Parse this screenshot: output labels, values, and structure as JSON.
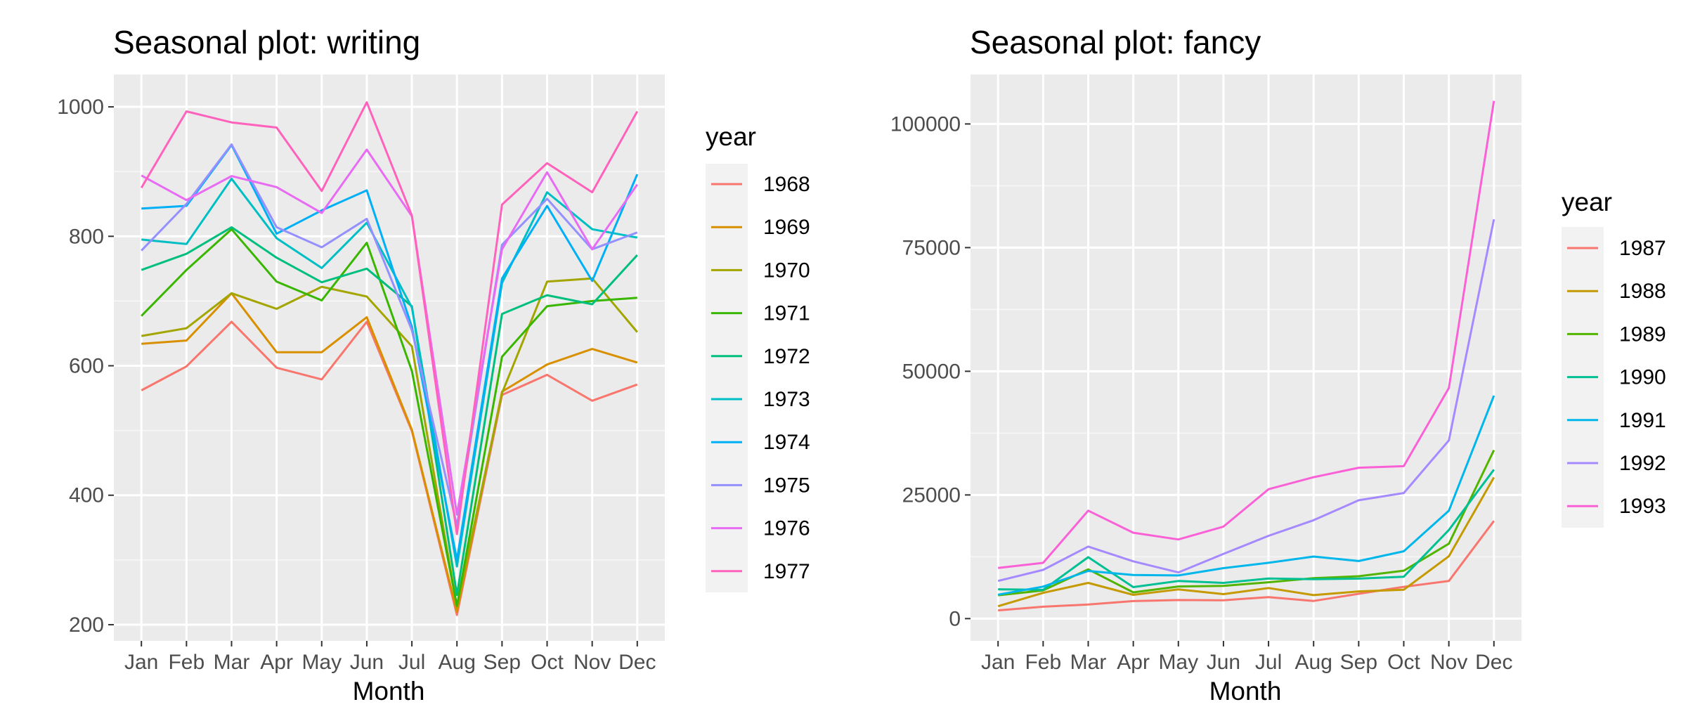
{
  "chart_data": [
    {
      "type": "line",
      "title": "Seasonal plot: writing",
      "xlabel": "Month",
      "ylabel": "",
      "categories": [
        "Jan",
        "Feb",
        "Mar",
        "Apr",
        "May",
        "Jun",
        "Jul",
        "Aug",
        "Sep",
        "Oct",
        "Nov",
        "Dec"
      ],
      "ylim": [
        175,
        1050
      ],
      "yticks": [
        200,
        400,
        600,
        800,
        1000
      ],
      "grid": true,
      "legend_title": "year",
      "legend_position": "right",
      "series": [
        {
          "name": "1968",
          "color": "#F8766D",
          "values": [
            562,
            599,
            668,
            597,
            579,
            668,
            499,
            215,
            555,
            586,
            546,
            571
          ]
        },
        {
          "name": "1969",
          "color": "#D89000",
          "values": [
            634,
            639,
            712,
            621,
            621,
            675,
            501,
            220,
            560,
            602,
            626,
            605
          ]
        },
        {
          "name": "1970",
          "color": "#A3A500",
          "values": [
            646,
            658,
            712,
            688,
            722,
            707,
            630,
            228,
            558,
            730,
            735,
            652
          ]
        },
        {
          "name": "1971",
          "color": "#39B600",
          "values": [
            677,
            748,
            811,
            730,
            701,
            790,
            592,
            229,
            614,
            692,
            700,
            705
          ]
        },
        {
          "name": "1972",
          "color": "#00BF7D",
          "values": [
            748,
            773,
            814,
            767,
            729,
            750,
            692,
            246,
            680,
            709,
            695,
            771
          ]
        },
        {
          "name": "1973",
          "color": "#00BFC4",
          "values": [
            795,
            788,
            889,
            797,
            751,
            821,
            690,
            290,
            728,
            868,
            811,
            798
          ]
        },
        {
          "name": "1974",
          "color": "#00B0F6",
          "values": [
            843,
            847,
            941,
            804,
            840,
            871,
            660,
            300,
            735,
            847,
            731,
            896
          ]
        },
        {
          "name": "1975",
          "color": "#9590FF",
          "values": [
            778,
            850,
            942,
            814,
            783,
            827,
            655,
            353,
            787,
            858,
            780,
            806
          ]
        },
        {
          "name": "1976",
          "color": "#E76BF3",
          "values": [
            894,
            856,
            893,
            876,
            836,
            934,
            831,
            370,
            780,
            899,
            780,
            880
          ]
        },
        {
          "name": "1977",
          "color": "#FF62BC",
          "values": [
            875,
            993,
            976,
            968,
            870,
            1007,
            832,
            340,
            849,
            913,
            868,
            993
          ]
        }
      ]
    },
    {
      "type": "line",
      "title": "Seasonal plot: fancy",
      "xlabel": "Month",
      "ylabel": "",
      "categories": [
        "Jan",
        "Feb",
        "Mar",
        "Apr",
        "May",
        "Jun",
        "Jul",
        "Aug",
        "Sep",
        "Oct",
        "Nov",
        "Dec"
      ],
      "ylim": [
        -4500,
        110000
      ],
      "yticks": [
        0,
        25000,
        50000,
        75000,
        100000
      ],
      "grid": true,
      "legend_title": "year",
      "legend_position": "right",
      "series": [
        {
          "name": "1987",
          "color": "#F8766D",
          "values": [
            1665,
            2398,
            2840,
            3547,
            3753,
            3714,
            4349,
            3566,
            5022,
            6423,
            7601,
            19756
          ]
        },
        {
          "name": "1988",
          "color": "#C49A00",
          "values": [
            2499,
            5198,
            7225,
            4806,
            5900,
            4951,
            6179,
            4752,
            5496,
            5835,
            12600,
            28541
          ]
        },
        {
          "name": "1989",
          "color": "#53B400",
          "values": [
            4717,
            5702,
            9957,
            5304,
            6492,
            6630,
            7349,
            8176,
            8573,
            9690,
            15151,
            34061
          ]
        },
        {
          "name": "1990",
          "color": "#00C094",
          "values": [
            5921,
            5815,
            12421,
            6369,
            7609,
            7224,
            8121,
            7979,
            8093,
            8476,
            17914,
            30114
          ]
        },
        {
          "name": "1991",
          "color": "#00B6EB",
          "values": [
            4827,
            6470,
            9639,
            8821,
            8722,
            10209,
            11276,
            12552,
            11637,
            13606,
            21822,
            45061
          ]
        },
        {
          "name": "1992",
          "color": "#A58AFF",
          "values": [
            7615,
            9849,
            14559,
            11588,
            9333,
            13082,
            16732,
            19889,
            23933,
            25391,
            36025,
            80721
          ]
        },
        {
          "name": "1993",
          "color": "#FB61D7",
          "values": [
            10243,
            11266,
            21826,
            17357,
            15998,
            18602,
            26155,
            28586,
            30505,
            30821,
            46634,
            104661
          ]
        }
      ]
    }
  ]
}
